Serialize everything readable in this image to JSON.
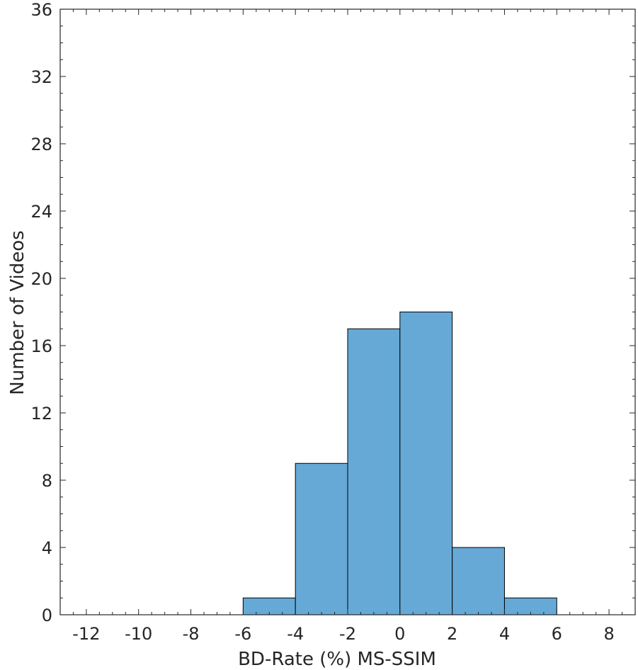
{
  "chart_data": {
    "type": "bar",
    "subtype": "histogram",
    "title": "",
    "xlabel": "BD-Rate (%) MS-SSIM",
    "ylabel": "Number of Videos",
    "xlim": [
      -13,
      9
    ],
    "ylim": [
      0,
      36
    ],
    "xticks": [
      -12,
      -10,
      -8,
      -6,
      -4,
      -2,
      0,
      2,
      4,
      6,
      8
    ],
    "yticks": [
      0,
      4,
      8,
      12,
      16,
      20,
      24,
      28,
      32,
      36
    ],
    "bins": [
      {
        "x0": -6,
        "x1": -4,
        "count": 1
      },
      {
        "x0": -4,
        "x1": -2,
        "count": 9
      },
      {
        "x0": -2,
        "x1": 0,
        "count": 17
      },
      {
        "x0": 0,
        "x1": 2,
        "count": 18
      },
      {
        "x0": 2,
        "x1": 4,
        "count": 4
      },
      {
        "x0": 4,
        "x1": 6,
        "count": 1
      }
    ],
    "bar_color": "#66a9d6",
    "edge_color": "#000000",
    "grid": false,
    "legend": "none"
  }
}
